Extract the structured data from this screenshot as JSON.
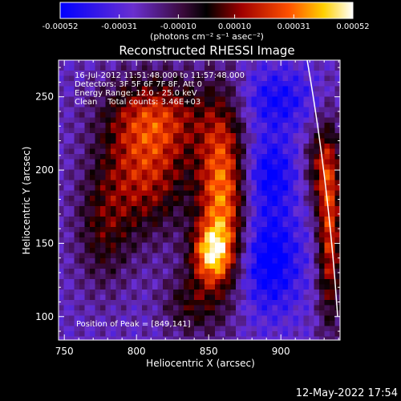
{
  "chart_data": {
    "type": "heatmap",
    "title": "Reconstructed RHESSI Image",
    "xlabel": "Heliocentric X (arcsec)",
    "ylabel": "Heliocentric Y (arcsec)",
    "xlim": [
      746,
      941
    ],
    "ylim": [
      84,
      275
    ],
    "xticks": [
      750,
      800,
      850,
      900
    ],
    "yticks": [
      100,
      150,
      200,
      250
    ],
    "colorbar": {
      "ticks": [
        -0.00052,
        -0.00031,
        -0.0001,
        0.0001,
        0.00031,
        0.00052
      ],
      "tick_labels": [
        "-0.00052",
        "-0.00031",
        "-0.00010",
        "0.00010",
        "0.00031",
        "0.00052"
      ],
      "range": [
        -0.00052,
        0.00052
      ],
      "unit_label": "(photons cm⁻² s⁻¹ asec⁻²)"
    },
    "info_lines": [
      "16-Jul-2012 11:51:48.000 to 11:57:48.000",
      "Detectors: 3F 5F 6F 7F 8F, Att 0",
      "Energy Range: 12.0 - 25.0 keV",
      "Clean    Total counts: 3.46E+03"
    ],
    "peak_label": "Position of Peak = [849,141]",
    "peak": [
      849,
      141
    ],
    "limb_color": "#ffffff"
  },
  "footer": {
    "timestamp": "12-May-2022 17:54"
  }
}
